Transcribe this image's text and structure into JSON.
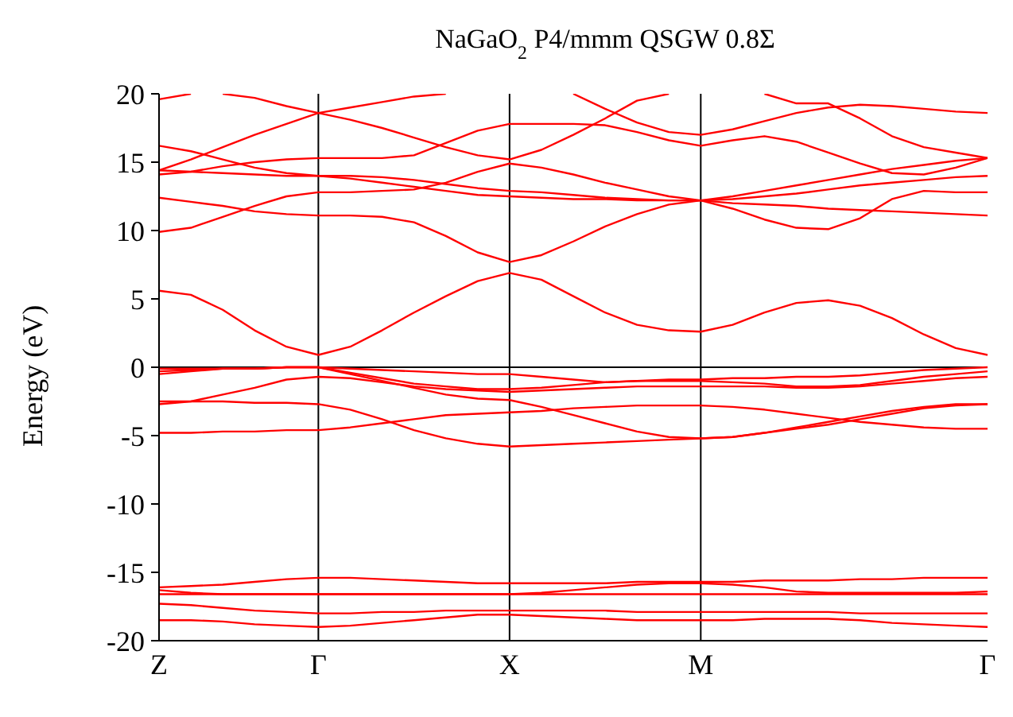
{
  "chart_data": {
    "type": "line",
    "title": "NaGaO$_{2}$ P4/mmm QSGW 0.8Σ",
    "ylabel": "Energy (eV)",
    "categories": [
      "Z",
      null,
      null,
      null,
      null,
      "Γ",
      null,
      null,
      null,
      null,
      null,
      "X",
      null,
      null,
      null,
      null,
      null,
      "M",
      null,
      null,
      null,
      null,
      null,
      null,
      null,
      null,
      "Γ"
    ],
    "ylim": [
      -20,
      20
    ],
    "yticks": [
      -20,
      -15,
      -10,
      -5,
      0,
      5,
      10,
      15,
      20
    ],
    "legend": false,
    "line_style": "solid",
    "ref_lines": [
      {
        "axis": "x",
        "value": "Γ",
        "color": "#000000"
      },
      {
        "axis": "x",
        "value": "X",
        "color": "#000000"
      },
      {
        "axis": "x",
        "value": "M",
        "color": "#000000"
      },
      {
        "axis": "y",
        "value": 0,
        "color": "#000000"
      }
    ],
    "series": [
      {
        "color": "#ff0000",
        "values": [
          -18.5,
          -18.5,
          -18.6,
          -18.8,
          -18.9,
          -19.0,
          -18.9,
          -18.7,
          -18.5,
          -18.3,
          -18.1,
          -18.1,
          -18.2,
          -18.3,
          -18.4,
          -18.5,
          -18.5,
          -18.5,
          -18.5,
          -18.4,
          -18.4,
          -18.4,
          -18.5,
          -18.7,
          -18.8,
          -18.9,
          -19.0
        ]
      },
      {
        "color": "#ff0000",
        "values": [
          -17.3,
          -17.4,
          -17.6,
          -17.8,
          -17.9,
          -18.0,
          -18.0,
          -17.9,
          -17.9,
          -17.8,
          -17.8,
          -17.8,
          -17.8,
          -17.8,
          -17.8,
          -17.9,
          -17.9,
          -17.9,
          -17.9,
          -17.9,
          -17.9,
          -17.9,
          -18.0,
          -18.0,
          -18.0,
          -18.0,
          -18.0
        ]
      },
      {
        "color": "#ff0000",
        "values": [
          -16.6,
          -16.6,
          -16.6,
          -16.6,
          -16.6,
          -16.6,
          -16.6,
          -16.6,
          -16.6,
          -16.6,
          -16.6,
          -16.6,
          -16.6,
          -16.6,
          -16.6,
          -16.6,
          -16.6,
          -16.6,
          -16.6,
          -16.6,
          -16.6,
          -16.6,
          -16.6,
          -16.6,
          -16.6,
          -16.6,
          -16.6
        ]
      },
      {
        "color": "#ff0000",
        "values": [
          -16.3,
          -16.5,
          -16.6,
          -16.6,
          -16.6,
          -16.6,
          -16.6,
          -16.6,
          -16.6,
          -16.6,
          -16.6,
          -16.6,
          -16.5,
          -16.3,
          -16.1,
          -15.9,
          -15.8,
          -15.8,
          -15.9,
          -16.1,
          -16.4,
          -16.5,
          -16.5,
          -16.5,
          -16.5,
          -16.5,
          -16.4
        ]
      },
      {
        "color": "#ff0000",
        "values": [
          -16.1,
          -16.0,
          -15.9,
          -15.7,
          -15.5,
          -15.4,
          -15.4,
          -15.5,
          -15.6,
          -15.7,
          -15.8,
          -15.8,
          -15.8,
          -15.8,
          -15.8,
          -15.7,
          -15.7,
          -15.7,
          -15.7,
          -15.6,
          -15.6,
          -15.6,
          -15.5,
          -15.5,
          -15.4,
          -15.4,
          -15.4
        ]
      },
      {
        "color": "#ff0000",
        "values": [
          -0.1,
          -0.1,
          -0.1,
          -0.1,
          0,
          0,
          -0.1,
          -0.2,
          -0.3,
          -0.4,
          -0.5,
          -0.5,
          -0.7,
          -0.9,
          -1.1,
          -1.0,
          -0.9,
          -0.9,
          -0.8,
          -0.8,
          -0.7,
          -0.7,
          -0.6,
          -0.4,
          -0.2,
          -0.1,
          0
        ]
      },
      {
        "color": "#ff0000",
        "values": [
          -0.3,
          -0.2,
          -0.1,
          -0.1,
          0,
          0,
          -0.4,
          -0.8,
          -1.2,
          -1.4,
          -1.6,
          -1.6,
          -1.5,
          -1.3,
          -1.1,
          -1.0,
          -1.0,
          -1.0,
          -1.1,
          -1.2,
          -1.4,
          -1.4,
          -1.3,
          -1.0,
          -0.7,
          -0.5,
          -0.3
        ]
      },
      {
        "color": "#ff0000",
        "values": [
          -0.5,
          -0.3,
          -0.1,
          -0.1,
          0,
          0,
          -0.5,
          -1.0,
          -1.5,
          -2.0,
          -2.3,
          -2.4,
          -2.9,
          -3.5,
          -4.1,
          -4.7,
          -5.1,
          -5.2,
          -5.1,
          -4.8,
          -4.5,
          -4.2,
          -3.8,
          -3.4,
          -3.0,
          -2.8,
          -2.7
        ]
      },
      {
        "color": "#ff0000",
        "values": [
          -2.7,
          -2.5,
          -2.0,
          -1.5,
          -0.9,
          -0.7,
          -0.8,
          -1.1,
          -1.4,
          -1.6,
          -1.7,
          -1.8,
          -1.7,
          -1.6,
          -1.5,
          -1.4,
          -1.4,
          -1.4,
          -1.4,
          -1.4,
          -1.5,
          -1.5,
          -1.4,
          -1.2,
          -1.0,
          -0.8,
          -0.7
        ]
      },
      {
        "color": "#ff0000",
        "values": [
          -2.5,
          -2.5,
          -2.5,
          -2.6,
          -2.6,
          -2.7,
          -3.1,
          -3.8,
          -4.6,
          -5.2,
          -5.6,
          -5.8,
          -5.7,
          -5.6,
          -5.5,
          -5.4,
          -5.3,
          -5.2,
          -5.1,
          -4.8,
          -4.4,
          -4.0,
          -3.6,
          -3.2,
          -2.9,
          -2.7,
          -2.7
        ]
      },
      {
        "color": "#ff0000",
        "values": [
          -4.8,
          -4.8,
          -4.7,
          -4.7,
          -4.6,
          -4.6,
          -4.4,
          -4.1,
          -3.8,
          -3.5,
          -3.4,
          -3.3,
          -3.2,
          -3.0,
          -2.9,
          -2.8,
          -2.8,
          -2.8,
          -2.9,
          -3.1,
          -3.4,
          -3.7,
          -4.0,
          -4.2,
          -4.4,
          -4.5,
          -4.5
        ]
      },
      {
        "color": "#ff0000",
        "values": [
          5.6,
          5.3,
          4.2,
          2.7,
          1.5,
          0.9,
          1.5,
          2.7,
          4.0,
          5.2,
          6.3,
          6.9,
          6.4,
          5.2,
          4.0,
          3.1,
          2.7,
          2.6,
          3.1,
          4.0,
          4.7,
          4.9,
          4.5,
          3.6,
          2.4,
          1.4,
          0.9
        ]
      },
      {
        "color": "#ff0000",
        "values": [
          9.9,
          10.2,
          11.0,
          11.8,
          12.5,
          12.8,
          12.8,
          12.9,
          13.0,
          13.5,
          14.3,
          14.9,
          14.6,
          14.1,
          13.5,
          13.0,
          12.5,
          12.2,
          11.6,
          10.8,
          10.2,
          10.1,
          10.9,
          12.3,
          12.9,
          12.8,
          12.8
        ]
      },
      {
        "color": "#ff0000",
        "values": [
          12.4,
          12.1,
          11.8,
          11.4,
          11.2,
          11.1,
          11.1,
          11.0,
          10.6,
          9.6,
          8.4,
          7.7,
          8.2,
          9.2,
          10.3,
          11.2,
          11.9,
          12.2,
          12.5,
          12.9,
          13.3,
          13.7,
          14.1,
          14.5,
          14.8,
          15.1,
          15.3
        ]
      },
      {
        "color": "#ff0000",
        "values": [
          14.1,
          14.3,
          14.7,
          15.0,
          15.2,
          15.3,
          15.3,
          15.3,
          15.5,
          16.4,
          17.3,
          17.8,
          17.8,
          17.8,
          17.7,
          17.2,
          16.6,
          16.2,
          16.6,
          16.9,
          16.5,
          15.7,
          14.9,
          14.2,
          14.1,
          14.6,
          15.3
        ]
      },
      {
        "color": "#ff0000",
        "values": [
          16.2,
          15.8,
          15.2,
          14.6,
          14.2,
          14.0,
          14.0,
          13.9,
          13.7,
          13.4,
          13.1,
          12.9,
          12.8,
          12.6,
          12.4,
          12.3,
          12.2,
          12.2,
          12.3,
          12.5,
          12.7,
          13.0,
          13.3,
          13.5,
          13.7,
          13.9,
          14.0
        ]
      },
      {
        "color": "#ff0000",
        "values": [
          14.4,
          14.3,
          14.2,
          14.1,
          14.0,
          14.0,
          13.8,
          13.5,
          13.2,
          12.9,
          12.6,
          12.5,
          12.4,
          12.3,
          12.3,
          12.2,
          12.2,
          12.2,
          12.0,
          11.9,
          11.8,
          11.6,
          11.5,
          11.4,
          11.3,
          11.2,
          11.1
        ]
      },
      {
        "color": "#ff0000",
        "values": [
          14.4,
          15.2,
          16.1,
          17.0,
          17.8,
          18.6,
          19.0,
          19.4,
          19.8,
          20.0,
          null,
          null,
          null,
          null,
          null,
          null,
          null,
          null,
          null,
          null,
          null,
          null,
          null,
          null,
          null,
          null,
          null
        ]
      },
      {
        "color": "#ff0000",
        "values": [
          null,
          null,
          20.0,
          19.7,
          19.1,
          18.6,
          18.1,
          17.5,
          16.8,
          16.1,
          15.5,
          15.2,
          15.9,
          17.0,
          18.2,
          19.5,
          20.0,
          null,
          null,
          null,
          null,
          null,
          null,
          null,
          null,
          null,
          null
        ]
      },
      {
        "color": "#ff0000",
        "values": [
          19.6,
          20.0,
          null,
          null,
          null,
          null,
          null,
          null,
          null,
          null,
          null,
          null,
          null,
          null,
          null,
          null,
          null,
          null,
          null,
          null,
          null,
          null,
          null,
          null,
          null,
          null,
          null
        ]
      },
      {
        "color": "#ff0000",
        "values": [
          null,
          null,
          null,
          null,
          null,
          null,
          null,
          null,
          null,
          null,
          null,
          null,
          null,
          20.0,
          18.9,
          17.9,
          17.2,
          17.0,
          17.4,
          18.0,
          18.6,
          19.0,
          19.2,
          19.1,
          18.9,
          18.7,
          18.6
        ]
      },
      {
        "color": "#ff0000",
        "values": [
          null,
          null,
          null,
          null,
          null,
          null,
          null,
          null,
          null,
          null,
          null,
          null,
          null,
          null,
          null,
          null,
          null,
          null,
          null,
          20.0,
          19.3,
          19.3,
          18.2,
          16.9,
          16.1,
          15.7,
          15.3
        ]
      }
    ]
  }
}
